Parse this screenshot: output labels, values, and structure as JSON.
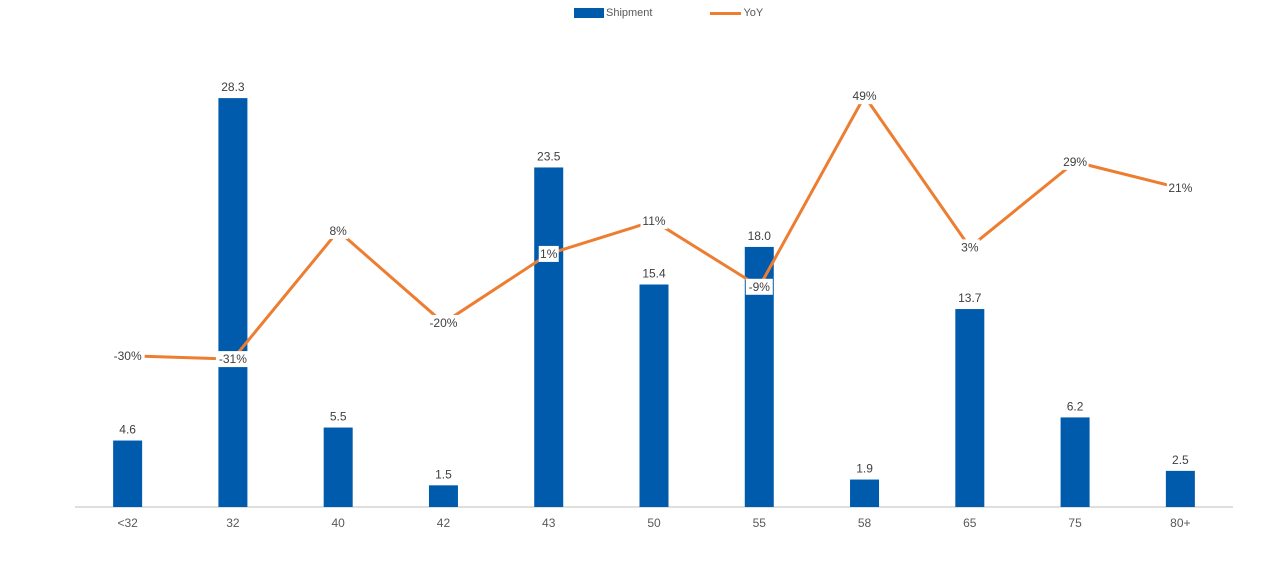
{
  "colors": {
    "bar": "#005bac",
    "line": "#ed7d31",
    "axis": "#bfbfbf",
    "label": "#404040"
  },
  "legend": {
    "shipment": "Shipment",
    "yoy": "YoY"
  },
  "chart_data": {
    "type": "bar",
    "categories": [
      "<32",
      "32",
      "40",
      "42",
      "43",
      "50",
      "55",
      "58",
      "65",
      "75",
      "80+"
    ],
    "series": [
      {
        "name": "Shipment",
        "type": "bar",
        "values": [
          4.6,
          28.3,
          5.5,
          1.5,
          23.5,
          15.4,
          18.0,
          1.9,
          13.7,
          6.2,
          2.5
        ],
        "labels": [
          "4.6",
          "28.3",
          "5.5",
          "1.5",
          "23.5",
          "15.4",
          "18.0",
          "1.9",
          "13.7",
          "6.2",
          "2.5"
        ]
      },
      {
        "name": "YoY",
        "type": "line",
        "values": [
          -30,
          -31,
          8,
          -20,
          1,
          11,
          -9,
          49,
          3,
          29,
          21
        ],
        "labels": [
          "-30%",
          "-31%",
          "8%",
          "-20%",
          "1%",
          "11%",
          "-9%",
          "49%",
          "3%",
          "29%",
          "21%"
        ]
      }
    ],
    "ylim_bar": [
      0,
      29
    ],
    "ylim_line": [
      -76,
      60
    ],
    "grid": false,
    "legend_position": "top-center"
  }
}
